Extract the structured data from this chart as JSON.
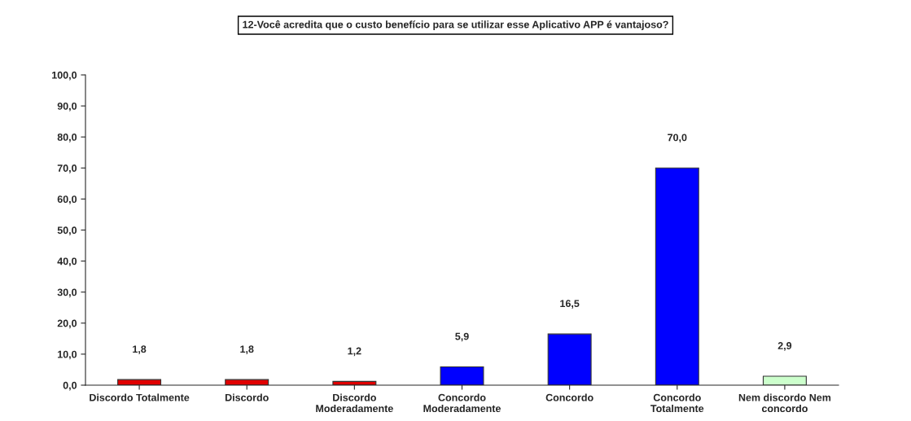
{
  "chart_data": {
    "type": "bar",
    "title": "12-Você acredita que o custo benefício para se utilizar esse Aplicativo APP é vantajoso?",
    "categories": [
      "Discordo Totalmente",
      "Discordo",
      "Discordo\nModeradamente",
      "Concordo\nModeradamente",
      "Concordo",
      "Concordo\nTotalmente",
      "Nem discordo Nem\nconcordo"
    ],
    "values": [
      1.8,
      1.8,
      1.2,
      5.9,
      16.5,
      70.0,
      2.9
    ],
    "colors": [
      "#e00000",
      "#e00000",
      "#e00000",
      "#0000ff",
      "#0000ff",
      "#0000ff",
      "#ccffcc"
    ],
    "value_labels": [
      "1,8",
      "1,8",
      "1,2",
      "5,9",
      "16,5",
      "70,0",
      "2,9"
    ],
    "ylim": [
      0,
      100
    ],
    "yticks": [
      {
        "value": 0,
        "label": "0,0"
      },
      {
        "value": 10,
        "label": "10,0"
      },
      {
        "value": 20,
        "label": "20,0"
      },
      {
        "value": 30,
        "label": "30,0"
      },
      {
        "value": 40,
        "label": "40,0"
      },
      {
        "value": 50,
        "label": "50,0"
      },
      {
        "value": 60,
        "label": "60,0"
      },
      {
        "value": 70,
        "label": "70,0"
      },
      {
        "value": 80,
        "label": "80,0"
      },
      {
        "value": 90,
        "label": "90,0"
      },
      {
        "value": 100,
        "label": "100,0"
      }
    ],
    "grid": false
  }
}
